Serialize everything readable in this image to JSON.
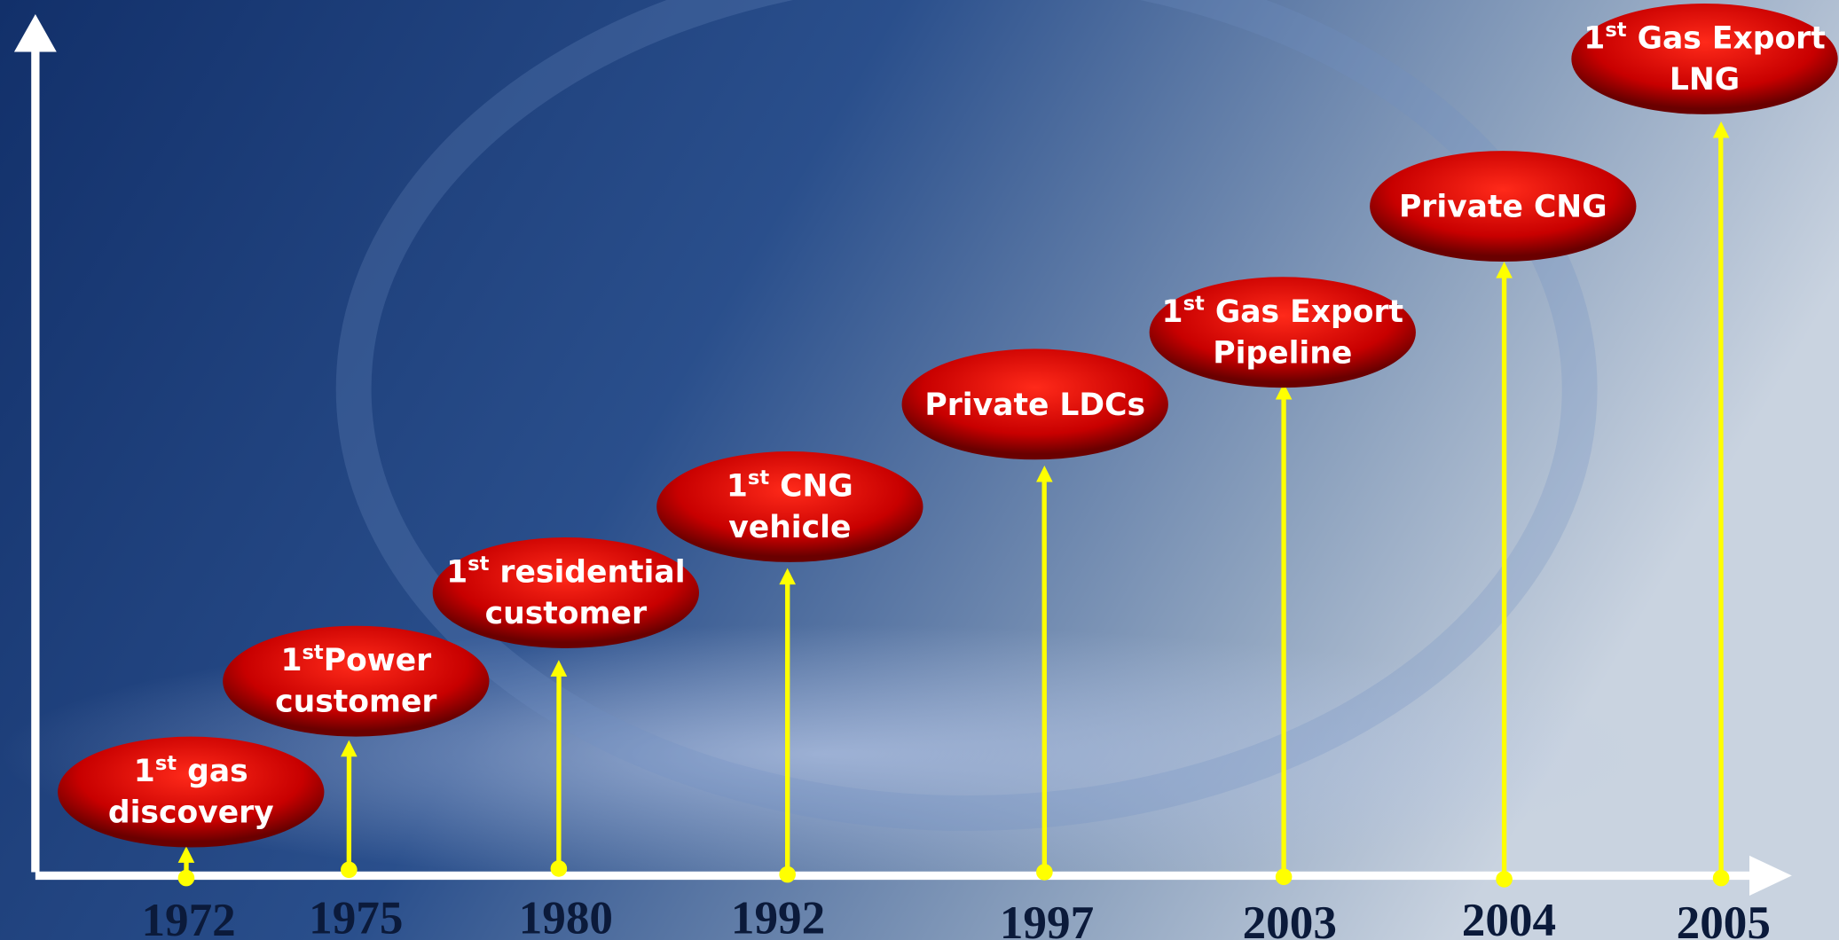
{
  "events": [
    {
      "year": "1972",
      "lines": [
        "1st gas",
        "discovery"
      ]
    },
    {
      "year": "1975",
      "lines": [
        "1stPower",
        "customer"
      ]
    },
    {
      "year": "1980",
      "lines": [
        "1st residential",
        "customer"
      ]
    },
    {
      "year": "1992",
      "lines": [
        "1st CNG",
        "vehicle"
      ]
    },
    {
      "year": "1997",
      "lines": [
        "Private LDCs"
      ]
    },
    {
      "year": "2003",
      "lines": [
        "1st Gas Export",
        "Pipeline"
      ]
    },
    {
      "year": "2004",
      "lines": [
        "Private CNG"
      ]
    },
    {
      "year": "2005",
      "lines": [
        "1st Gas Export",
        "LNG"
      ]
    }
  ]
}
